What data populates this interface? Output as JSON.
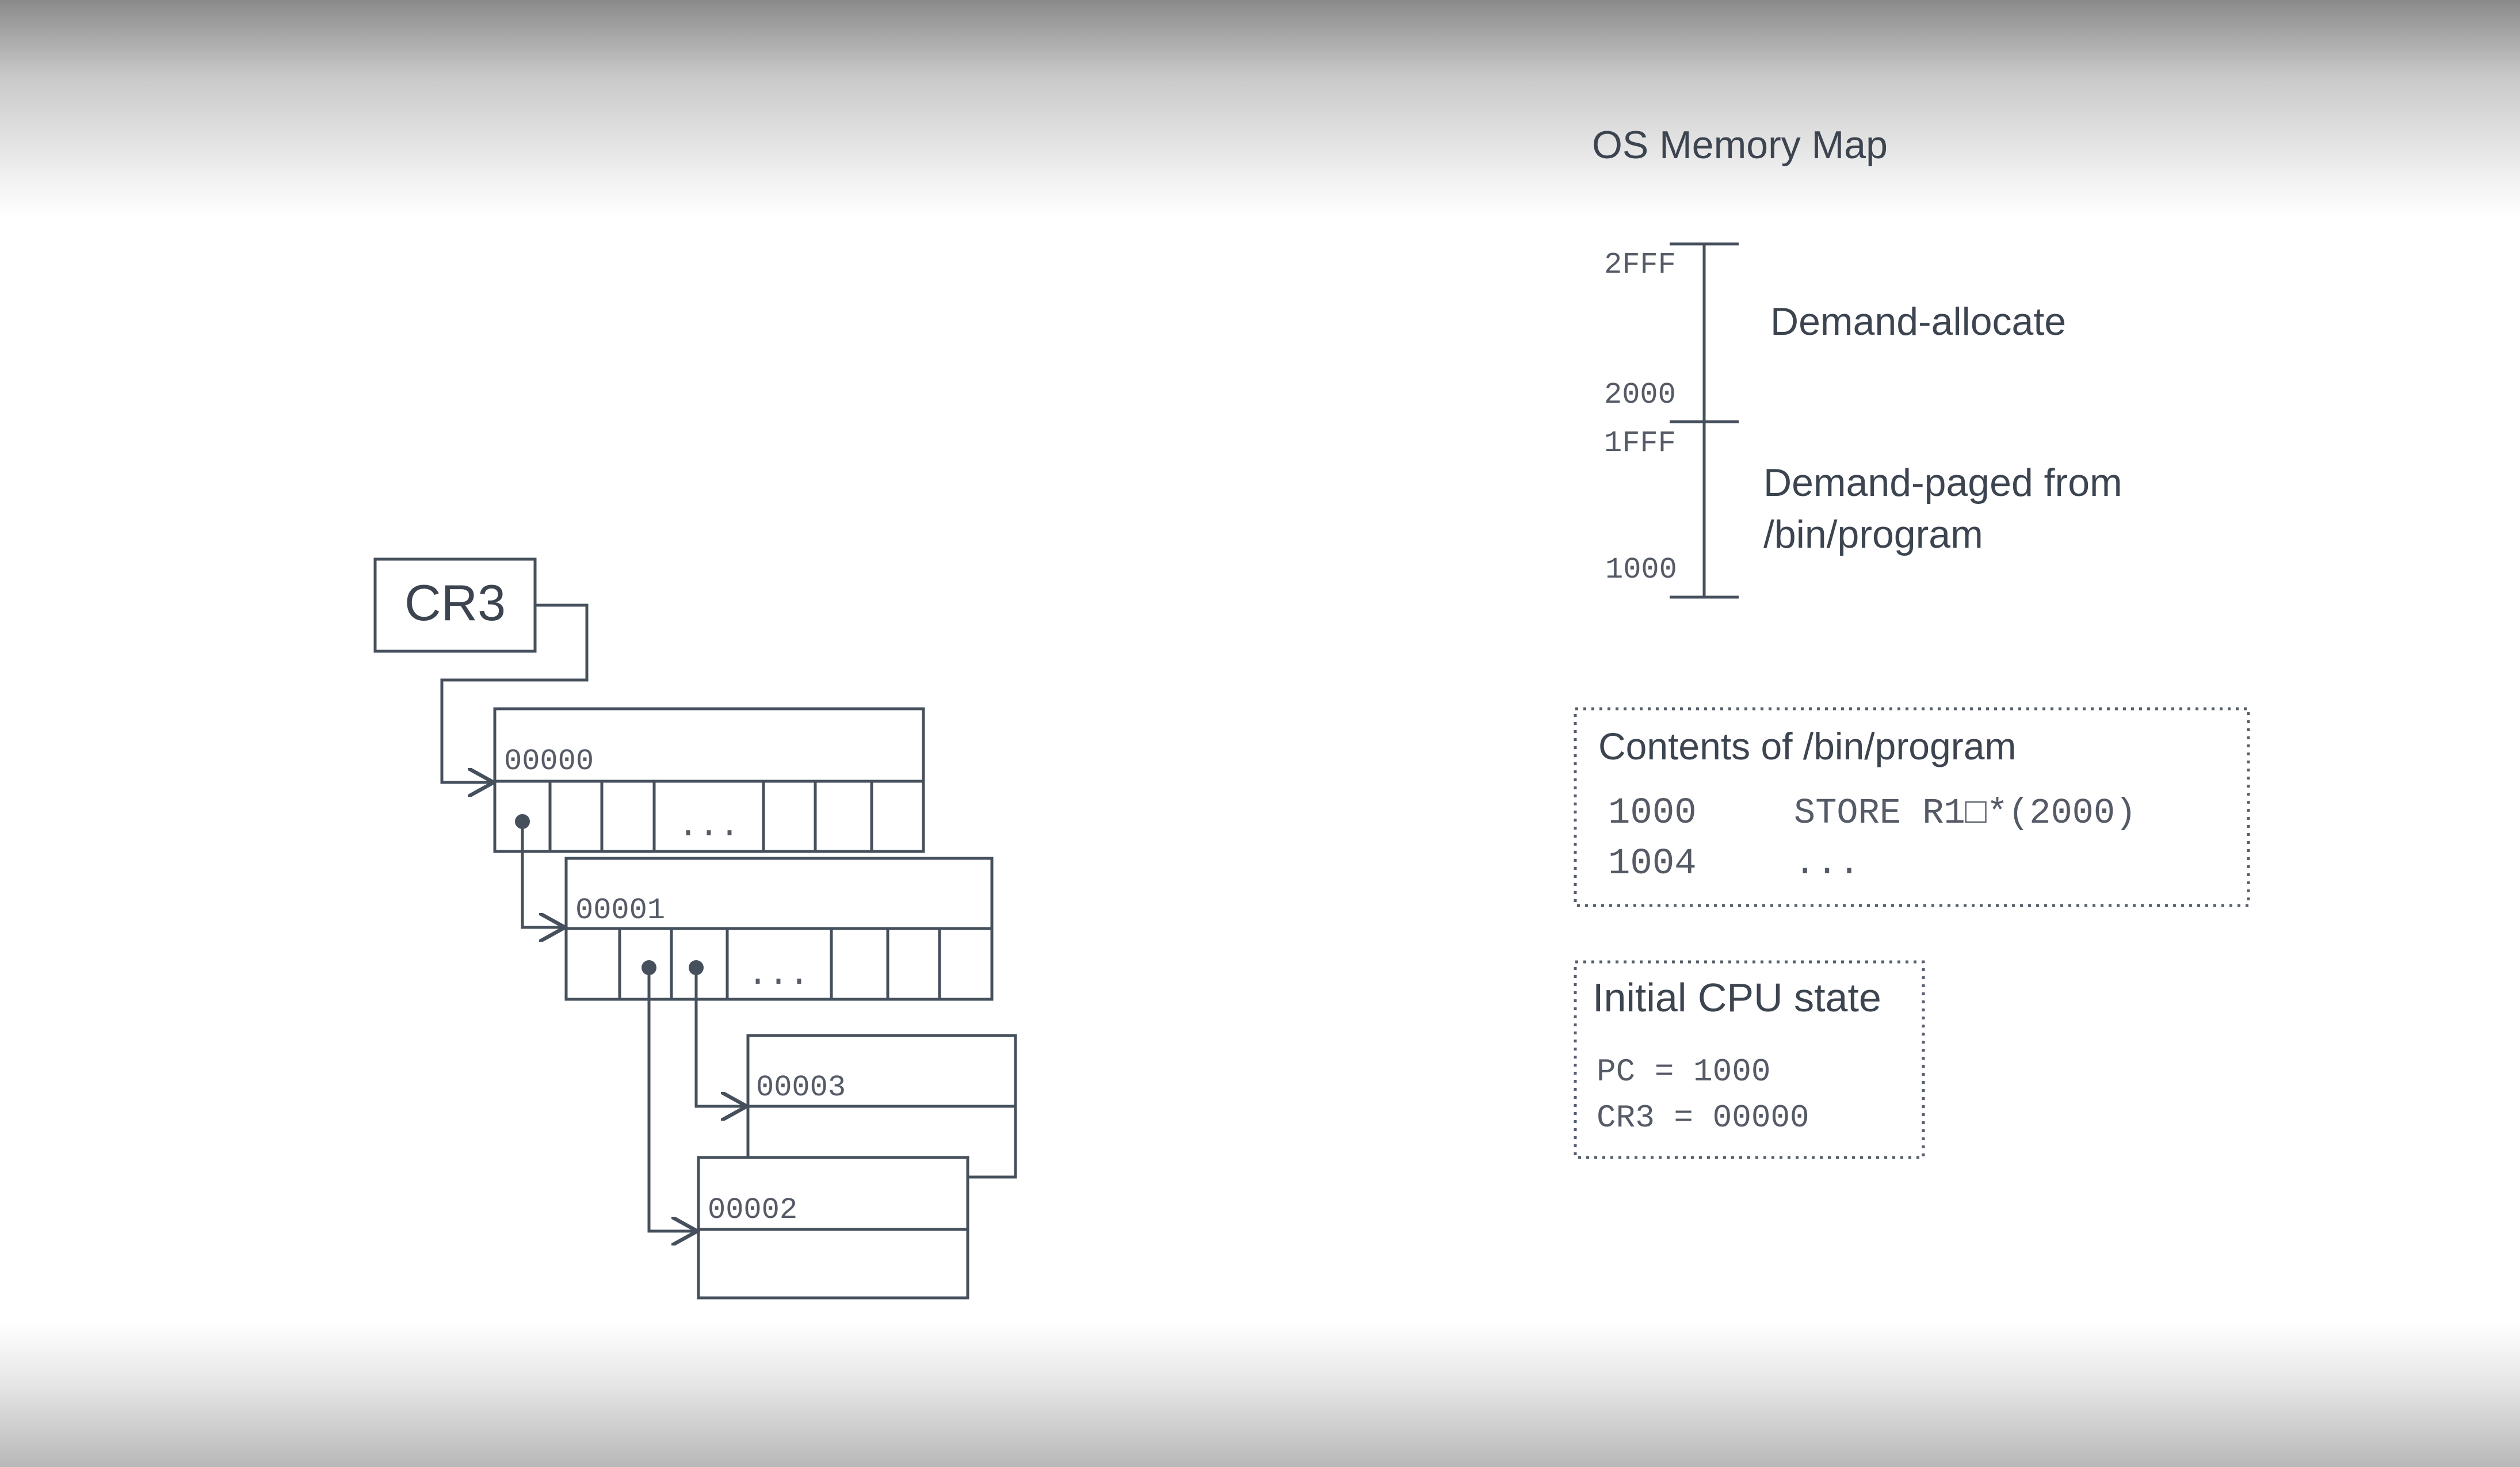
{
  "memory_map": {
    "title": "OS Memory Map",
    "regions": [
      {
        "top_label": "2FFF",
        "bottom_label": "2000",
        "description": [
          "Demand-allocate"
        ]
      },
      {
        "top_label": "1FFF",
        "bottom_label": "1000",
        "description": [
          "Demand-paged from",
          "/bin/program"
        ]
      }
    ]
  },
  "program": {
    "title": "Contents of /bin/program",
    "lines": [
      {
        "addr": "1000",
        "code": "STORE R1□*(2000)"
      },
      {
        "addr": "1004",
        "code": "..."
      }
    ]
  },
  "cpu": {
    "title": "Initial CPU state",
    "lines": [
      "PC = 1000",
      "CR3 = 00000"
    ]
  },
  "page_tables": {
    "register": "CR3",
    "ellipsis": "...",
    "tables": [
      {
        "id": "00000"
      },
      {
        "id": "00001"
      },
      {
        "id": "00003"
      },
      {
        "id": "00002"
      }
    ]
  }
}
